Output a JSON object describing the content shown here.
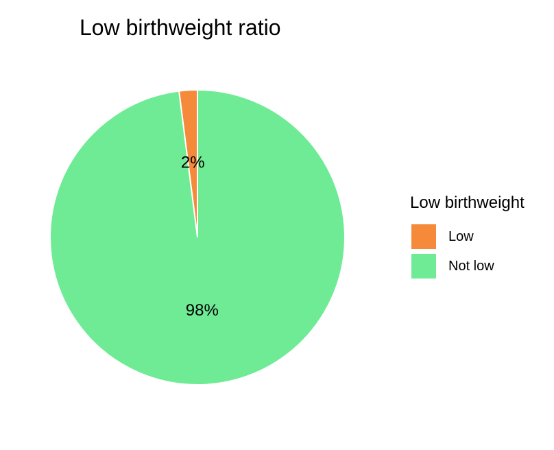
{
  "chart_data": {
    "type": "pie",
    "title": "Low birthweight ratio",
    "legend_title": "Low birthweight",
    "legend_position": "right",
    "slices": [
      {
        "label": "Low",
        "value": 2,
        "display": "2%",
        "color": "#F58A3A"
      },
      {
        "label": "Not low",
        "value": 98,
        "display": "98%",
        "color": "#6EEB94"
      }
    ]
  }
}
